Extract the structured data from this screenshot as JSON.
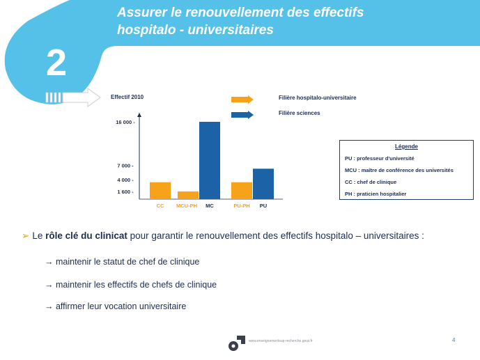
{
  "header": {
    "title_line1": "Assurer le renouvellement des effectifs",
    "title_line2": "hospitalo - universitaires",
    "slide_number": "2",
    "colors": {
      "banner": "#56c1e8"
    }
  },
  "chart_data": {
    "type": "bar",
    "title": "Effectif 2010",
    "categories": [
      "CC",
      "MCU-PH",
      "MC",
      "PU-PH",
      "PU"
    ],
    "values": [
      3500,
      1600,
      16000,
      3500,
      6300
    ],
    "category_series": [
      "Filière hospitalo-universitaire",
      "Filière hospitalo-universitaire",
      "Filière sciences",
      "Filière hospitalo-universitaire",
      "Filière sciences"
    ],
    "series": [
      {
        "name": "Filière hospitalo-universitaire",
        "color": "#f7a21b"
      },
      {
        "name": "Filière sciences",
        "color": "#1b63a6"
      }
    ],
    "category_label_colors": [
      "#f7a21b",
      "#f7a21b",
      "#1f2d55",
      "#f7a21b",
      "#1f2d55"
    ],
    "yticks": [
      {
        "value": 16000,
        "label": "16 000 -"
      },
      {
        "value": 7000,
        "label": "7 000 -"
      },
      {
        "value": 4000,
        "label": "4 000 -"
      },
      {
        "value": 1600,
        "label": "1 600 -"
      }
    ],
    "ylim": [
      0,
      17000
    ],
    "legend_position": "top-right",
    "grid": false
  },
  "legend_box": {
    "title": "Légende",
    "items": [
      "PU : professeur d'université",
      "MCU : maître de conférence des universités",
      "CC : chef de clinique",
      "PH : praticien hospitalier"
    ]
  },
  "body": {
    "main_prefix": "Le ",
    "main_strong": "rôle clé du clinicat",
    "main_suffix": " pour garantir le renouvellement des effectifs hospitalo – universitaires :",
    "sub_items": [
      "→ maintenir le statut de chef de clinique",
      "→ maintenir les effectifs de chefs de clinique",
      "→ affirmer leur vocation universitaire"
    ]
  },
  "footer": {
    "url": "www.enseignementsup-recherche.gouv.fr",
    "page_number": "4"
  }
}
